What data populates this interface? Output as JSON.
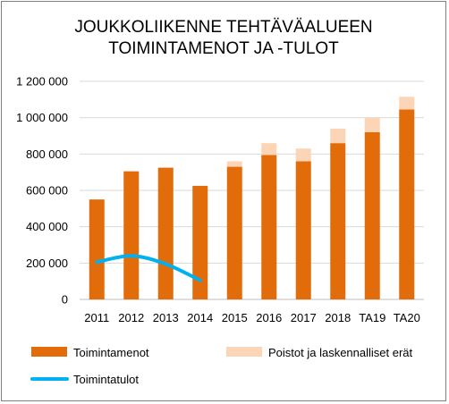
{
  "chart_data": {
    "type": "bar",
    "title_lines": [
      "JOUKKOLIIKENNE TEHTÄVÄALUEEN",
      "TOIMINTAMENOT  JA -TULOT"
    ],
    "categories": [
      "2011",
      "2012",
      "2013",
      "2014",
      "2015",
      "2016",
      "2017",
      "2018",
      "TA19",
      "TA20"
    ],
    "series": [
      {
        "name": "Toimintamenot",
        "kind": "bar-stacked",
        "color": "#e36c0a",
        "values": [
          550000,
          705000,
          725000,
          625000,
          730000,
          795000,
          760000,
          860000,
          920000,
          1045000
        ]
      },
      {
        "name": "Poistot ja laskennalliset erät",
        "kind": "bar-stacked",
        "color": "#fbd5b5",
        "values": [
          0,
          0,
          0,
          0,
          30000,
          65000,
          70000,
          80000,
          80000,
          70000
        ]
      },
      {
        "name": "Toimintatulot",
        "kind": "line",
        "color": "#00b0f0",
        "values": [
          205000,
          240000,
          195000,
          105000,
          null,
          null,
          null,
          null,
          null,
          null
        ]
      }
    ],
    "ylim": [
      0,
      1200000
    ],
    "y_ticks": [
      0,
      200000,
      400000,
      600000,
      800000,
      1000000,
      1200000
    ],
    "y_tick_labels": [
      "0",
      "200 000",
      "400 000",
      "600 000",
      "800 000",
      "1 000 000",
      "1 200 000"
    ],
    "grid": true,
    "legend_placement": "bottom"
  }
}
